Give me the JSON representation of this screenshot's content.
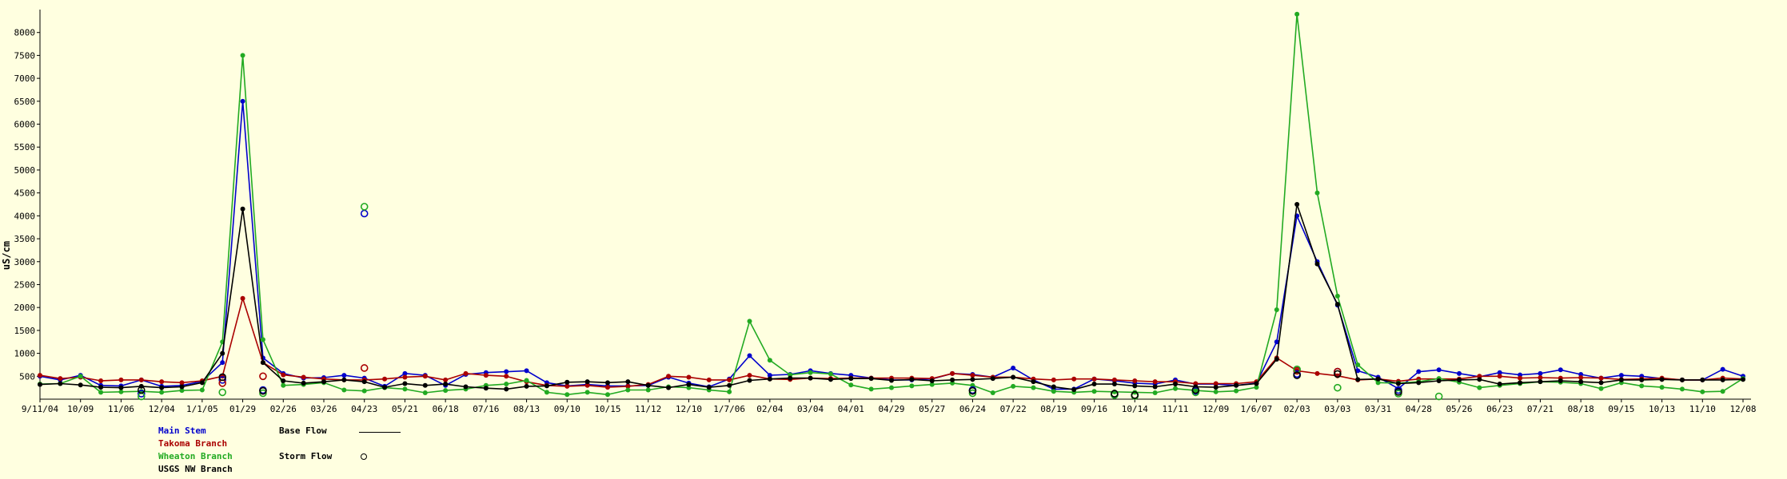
{
  "chart_data": {
    "type": "line",
    "title": "",
    "xlabel": "",
    "ylabel": "uS/cm",
    "ylim": [
      0,
      8500
    ],
    "yticks": [
      500,
      1000,
      1500,
      2000,
      2500,
      3000,
      3500,
      4000,
      4500,
      5000,
      5500,
      6000,
      6500,
      7000,
      7500,
      8000
    ],
    "n_points": 85,
    "xtick_labels": [
      "9/11/04",
      "10/09",
      "11/06",
      "12/04",
      "1/1/05",
      "01/29",
      "02/26",
      "03/26",
      "04/23",
      "05/21",
      "06/18",
      "07/16",
      "08/13",
      "09/10",
      "10/15",
      "11/12",
      "12/10",
      "1/7/06",
      "02/04",
      "03/04",
      "04/01",
      "04/29",
      "05/27",
      "06/24",
      "07/22",
      "08/19",
      "09/16",
      "10/14",
      "11/11",
      "12/09",
      "1/6/07",
      "02/03",
      "03/03",
      "03/31",
      "04/28",
      "05/26",
      "06/23",
      "07/21",
      "08/18",
      "09/15",
      "10/13",
      "11/10",
      "12/08"
    ],
    "series": [
      {
        "name": "Main Stem",
        "color": "#0000cc",
        "values": [
          500,
          420,
          520,
          300,
          290,
          420,
          280,
          300,
          390,
          800,
          6500,
          900,
          560,
          460,
          470,
          520,
          460,
          280,
          560,
          520,
          300,
          540,
          580,
          600,
          620,
          360,
          290,
          320,
          290,
          290,
          300,
          480,
          350,
          270,
          440,
          950,
          520,
          540,
          620,
          560,
          520,
          460,
          420,
          420,
          440,
          560,
          540,
          480,
          680,
          420,
          220,
          220,
          440,
          400,
          350,
          330,
          420,
          330,
          330,
          300,
          350,
          1250,
          4000,
          3000,
          2050,
          620,
          480,
          230,
          600,
          640,
          560,
          490,
          580,
          530,
          560,
          640,
          540,
          460,
          520,
          500,
          450,
          420,
          420,
          650,
          500
        ]
      },
      {
        "name": "Takoma Branch",
        "color": "#aa0000",
        "values": [
          520,
          450,
          480,
          400,
          420,
          420,
          380,
          360,
          400,
          500,
          2200,
          800,
          530,
          480,
          440,
          420,
          420,
          440,
          480,
          500,
          420,
          560,
          520,
          500,
          380,
          300,
          280,
          300,
          260,
          280,
          320,
          500,
          480,
          420,
          420,
          520,
          440,
          430,
          460,
          450,
          460,
          460,
          460,
          460,
          450,
          560,
          520,
          480,
          480,
          440,
          420,
          440,
          440,
          420,
          400,
          380,
          380,
          340,
          340,
          340,
          380,
          900,
          620,
          560,
          510,
          420,
          440,
          390,
          440,
          440,
          440,
          500,
          500,
          460,
          470,
          460,
          470,
          460,
          430,
          440,
          460,
          420,
          420,
          460,
          440
        ]
      },
      {
        "name": "Wheaton Branch",
        "color": "#22aa22",
        "values": [
          330,
          340,
          500,
          150,
          160,
          170,
          150,
          190,
          200,
          1250,
          7500,
          1300,
          300,
          320,
          360,
          200,
          180,
          250,
          220,
          140,
          190,
          220,
          300,
          330,
          410,
          150,
          100,
          150,
          100,
          200,
          200,
          270,
          250,
          200,
          160,
          1700,
          850,
          530,
          580,
          550,
          310,
          220,
          250,
          290,
          320,
          350,
          300,
          140,
          280,
          250,
          170,
          150,
          170,
          160,
          150,
          140,
          230,
          190,
          160,
          180,
          260,
          1950,
          8400,
          4500,
          2250,
          750,
          360,
          350,
          380,
          450,
          370,
          250,
          300,
          340,
          380,
          370,
          340,
          230,
          360,
          290,
          260,
          220,
          160,
          170,
          450
        ]
      },
      {
        "name": "USGS NW Branch",
        "color": "#000000",
        "values": [
          320,
          340,
          310,
          260,
          250,
          280,
          250,
          270,
          360,
          1000,
          4150,
          800,
          400,
          350,
          380,
          420,
          380,
          260,
          340,
          300,
          330,
          270,
          240,
          220,
          280,
          290,
          370,
          380,
          360,
          380,
          300,
          250,
          320,
          260,
          300,
          410,
          440,
          460,
          460,
          430,
          450,
          450,
          410,
          430,
          400,
          420,
          430,
          450,
          480,
          380,
          270,
          210,
          330,
          330,
          290,
          270,
          330,
          270,
          260,
          300,
          340,
          870,
          4250,
          2950,
          2070,
          430,
          440,
          340,
          360,
          400,
          420,
          430,
          330,
          360,
          380,
          400,
          380,
          360,
          420,
          420,
          430,
          420,
          420,
          420,
          430
        ]
      }
    ],
    "storm_flow": [
      {
        "series": "Main Stem",
        "points": [
          [
            5,
            120
          ],
          [
            9,
            420
          ],
          [
            11,
            200
          ],
          [
            16,
            4050
          ],
          [
            46,
            200
          ],
          [
            53,
            100
          ],
          [
            54,
            80
          ],
          [
            57,
            180
          ],
          [
            62,
            550
          ],
          [
            64,
            600
          ],
          [
            67,
            200
          ]
        ]
      },
      {
        "series": "Takoma Branch",
        "points": [
          [
            9,
            350
          ],
          [
            11,
            500
          ],
          [
            16,
            680
          ],
          [
            62,
            620
          ],
          [
            64,
            600
          ]
        ]
      },
      {
        "series": "Wheaton Branch",
        "points": [
          [
            5,
            60
          ],
          [
            9,
            150
          ],
          [
            11,
            130
          ],
          [
            16,
            4200
          ],
          [
            46,
            130
          ],
          [
            53,
            90
          ],
          [
            54,
            70
          ],
          [
            57,
            150
          ],
          [
            62,
            650
          ],
          [
            64,
            250
          ],
          [
            67,
            120
          ],
          [
            69,
            60
          ]
        ]
      },
      {
        "series": "USGS NW Branch",
        "points": [
          [
            5,
            200
          ],
          [
            9,
            480
          ],
          [
            11,
            180
          ],
          [
            46,
            180
          ],
          [
            53,
            120
          ],
          [
            54,
            90
          ],
          [
            57,
            200
          ],
          [
            62,
            520
          ],
          [
            64,
            550
          ],
          [
            67,
            160
          ]
        ]
      }
    ],
    "legend": {
      "series_labels": [
        "Main Stem",
        "Takoma Branch",
        "Wheaton Branch",
        "USGS NW Branch"
      ],
      "key_labels": [
        "Base Flow",
        "Storm Flow"
      ]
    }
  }
}
